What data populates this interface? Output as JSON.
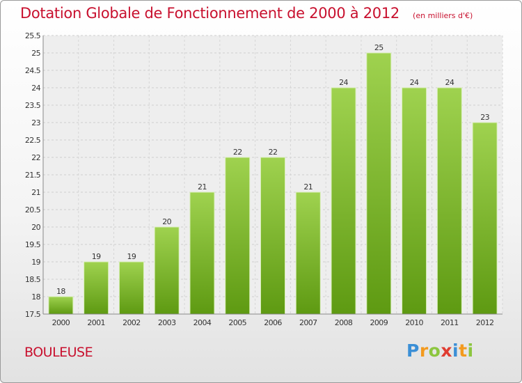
{
  "chart_data": {
    "type": "bar",
    "title": "Dotation Globale de Fonctionnement de 2000 à 2012",
    "subtitle": "(en milliers d'€)",
    "categories": [
      "2000",
      "2001",
      "2002",
      "2003",
      "2004",
      "2005",
      "2006",
      "2007",
      "2008",
      "2009",
      "2010",
      "2011",
      "2012"
    ],
    "values": [
      18,
      19,
      19,
      20,
      21,
      22,
      22,
      21,
      24,
      25,
      24,
      24,
      23
    ],
    "ylim": [
      17.5,
      25.5
    ],
    "yticks": [
      "17.5",
      "18",
      "18.5",
      "19",
      "19.5",
      "20",
      "20.5",
      "21",
      "21.5",
      "22",
      "22.5",
      "23",
      "23.5",
      "24",
      "24.5",
      "25",
      "25.5"
    ],
    "grid": true,
    "bar_color_top": "#9fd24f",
    "bar_color_bottom": "#5e9a12"
  },
  "commune": "BOULEUSE",
  "logo": {
    "letters": [
      "P",
      "r",
      "o",
      "x",
      "i",
      "t",
      "i"
    ],
    "colors": [
      "#3b8fd6",
      "#f39a1e",
      "#8cc63f",
      "#e03c31",
      "#3b8fd6",
      "#f39a1e",
      "#8cc63f"
    ]
  }
}
